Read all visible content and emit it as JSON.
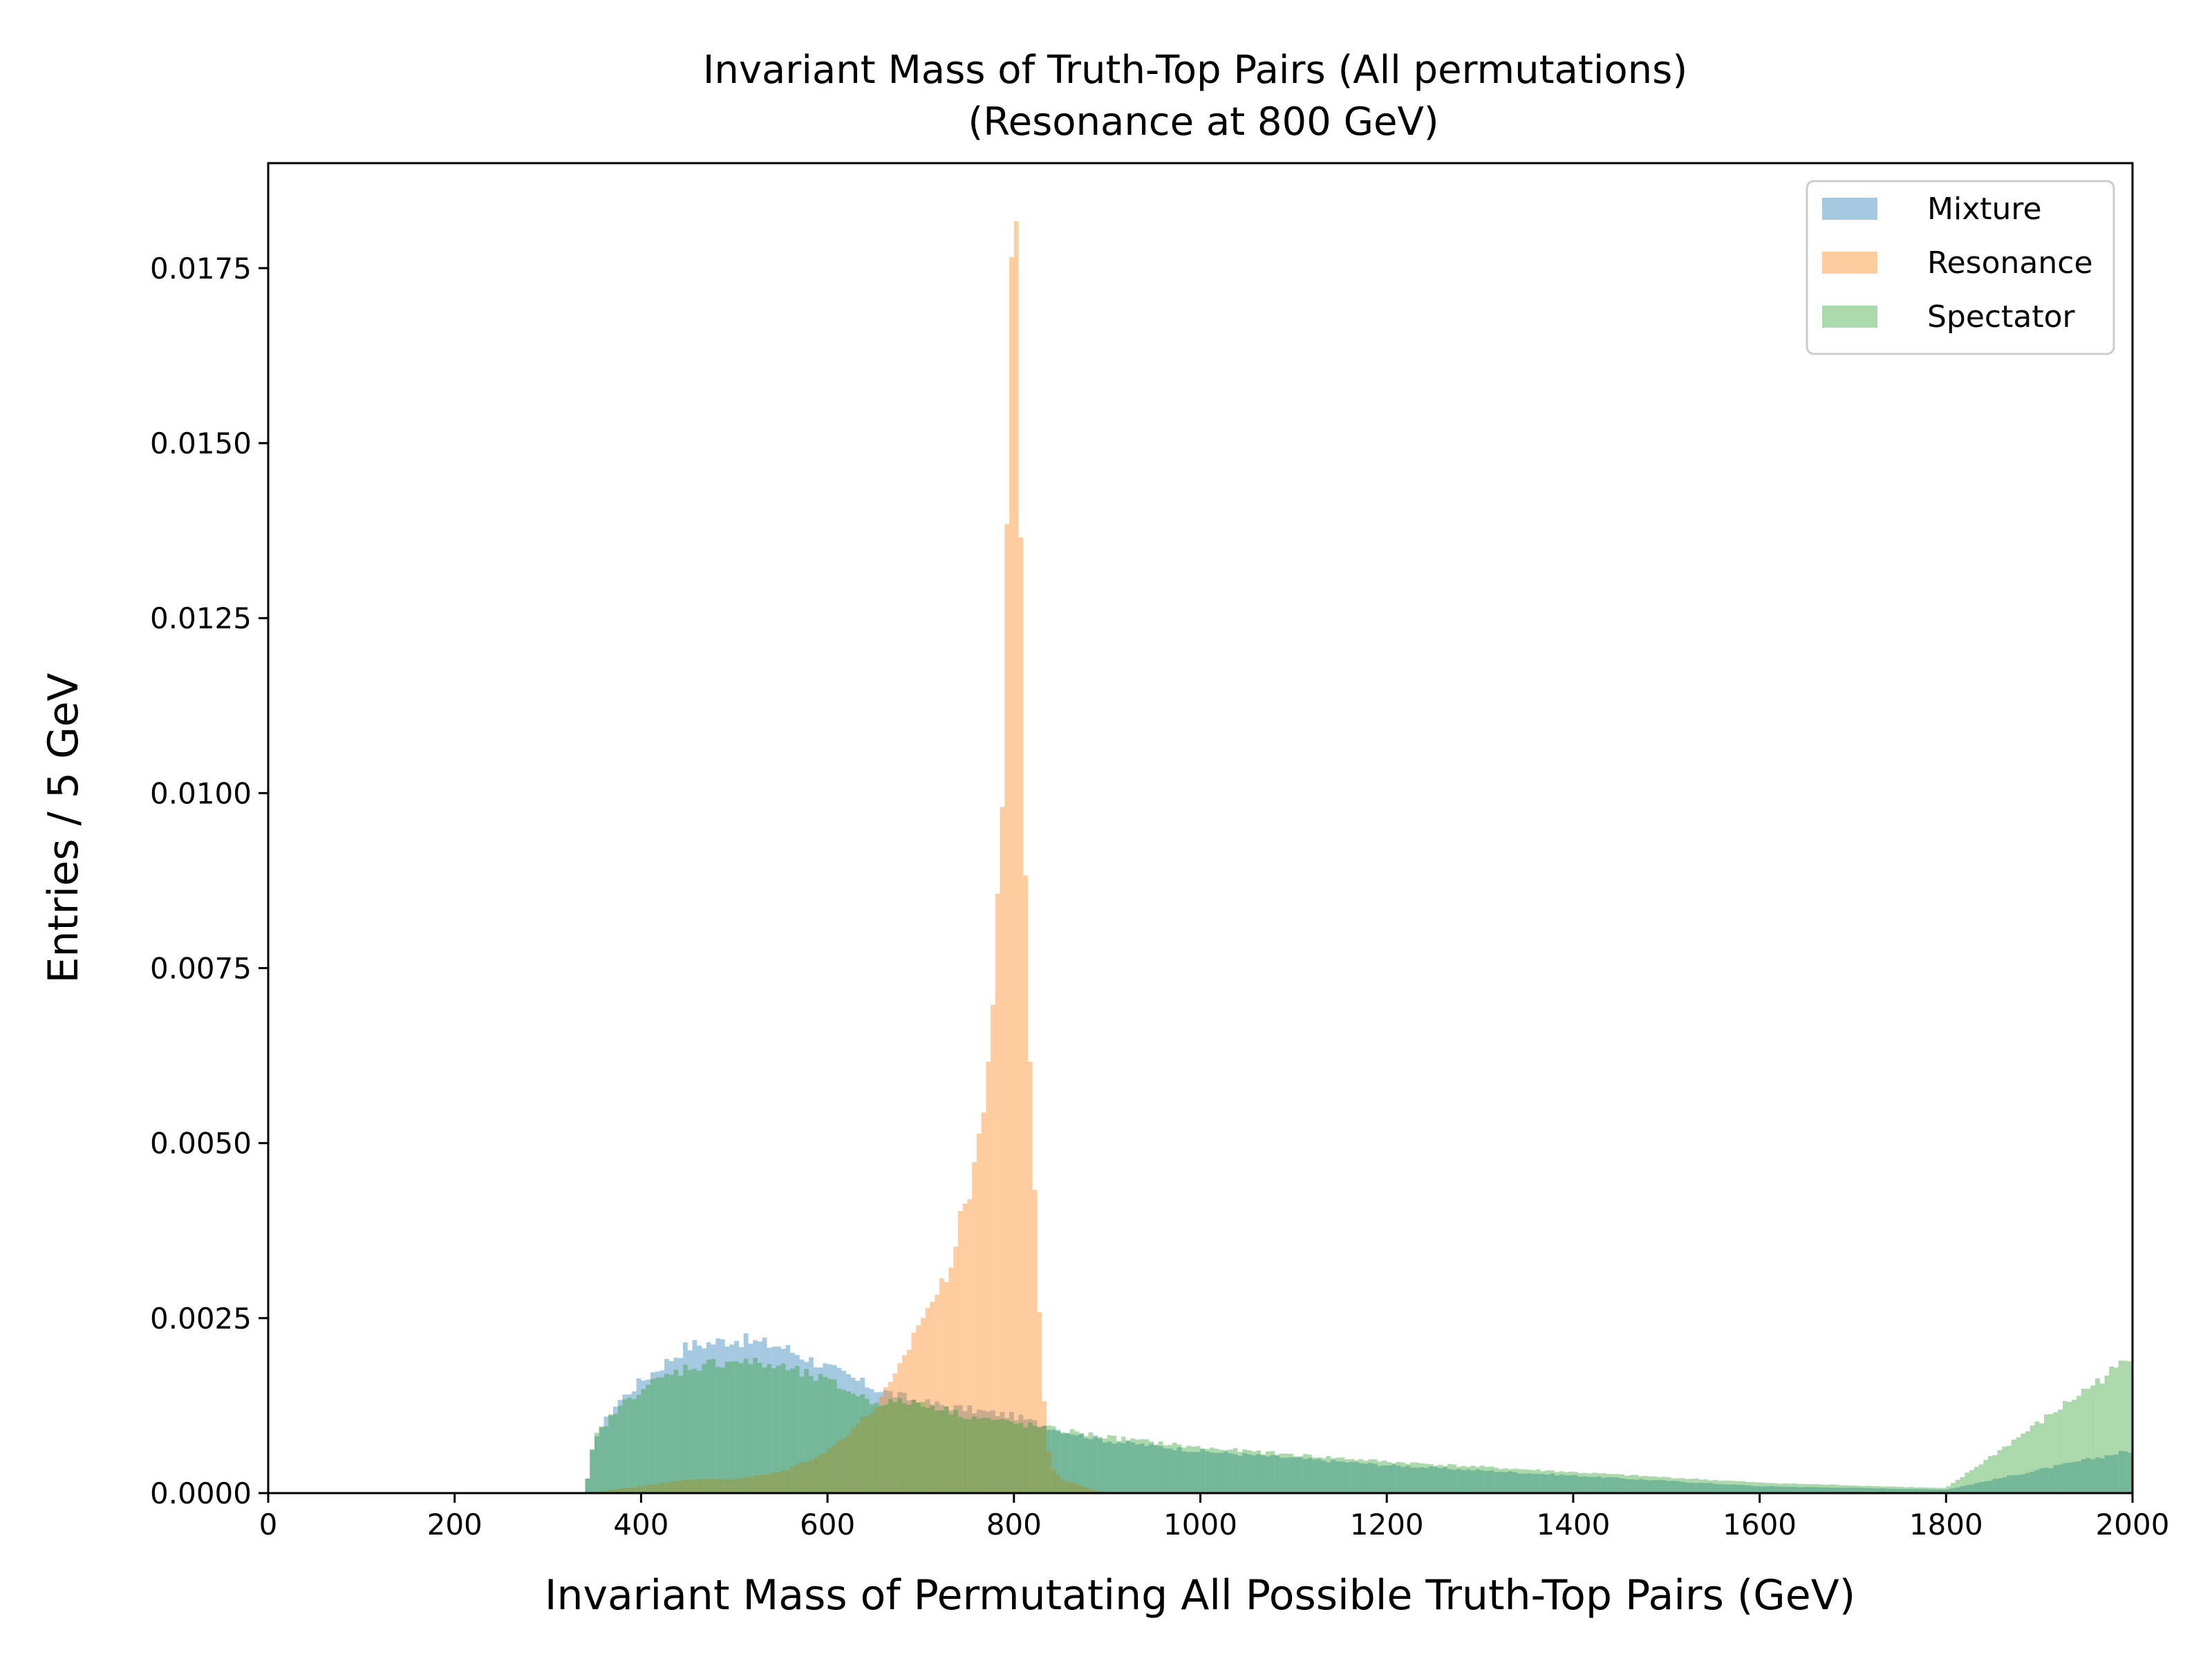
{
  "chart_data": {
    "type": "bar",
    "title": "Invariant Mass of Truth-Top Pairs (All permutations)",
    "subtitle": "(Resonance at 800 GeV)",
    "xlabel": "Invariant Mass of Permutating All Possible Truth-Top Pairs (GeV)",
    "ylabel": "Entries / 5 GeV",
    "xlim": [
      0,
      2000
    ],
    "ylim": [
      0,
      0.019
    ],
    "bin_width": 5,
    "grid": false,
    "legend_position": "top-right",
    "x_ticks": [
      "0",
      "200",
      "400",
      "600",
      "800",
      "1000",
      "1200",
      "1400",
      "1600",
      "1800",
      "2000"
    ],
    "y_ticks": [
      "0.0000",
      "0.0025",
      "0.0050",
      "0.0075",
      "0.0100",
      "0.0125",
      "0.0150",
      "0.0175"
    ],
    "x_tick_values": [
      0,
      200,
      400,
      600,
      800,
      1000,
      1200,
      1400,
      1600,
      1800,
      2000
    ],
    "y_tick_values": [
      0,
      0.0025,
      0.005,
      0.0075,
      0.01,
      0.0125,
      0.015,
      0.0175
    ],
    "series": [
      {
        "name": "Mixture",
        "color": "#1f77b4",
        "x": [
          340,
          350,
          375,
          400,
          450,
          500,
          550,
          600,
          650,
          700,
          750,
          800,
          850,
          900,
          1000,
          1200,
          1400,
          1600,
          1800,
          1995
        ],
        "values": [
          0.0,
          0.0008,
          0.0013,
          0.0016,
          0.0021,
          0.0022,
          0.0021,
          0.0018,
          0.0015,
          0.0013,
          0.0012,
          0.0011,
          0.0009,
          0.00075,
          0.0006,
          0.0004,
          0.00025,
          0.0001,
          5e-05,
          0.0006
        ]
      },
      {
        "name": "Resonance",
        "color": "#ff7f0e",
        "x": [
          340,
          400,
          450,
          500,
          550,
          600,
          650,
          675,
          700,
          725,
          750,
          760,
          770,
          780,
          785,
          790,
          795,
          800,
          805,
          810,
          815,
          820,
          825,
          830,
          835,
          840,
          850,
          875,
          900
        ],
        "values": [
          0.0,
          0.0001,
          0.0002,
          0.0002,
          0.0003,
          0.0006,
          0.0012,
          0.0017,
          0.0025,
          0.003,
          0.0042,
          0.005,
          0.0055,
          0.0078,
          0.0095,
          0.0105,
          0.016,
          0.0182,
          0.0173,
          0.0105,
          0.0075,
          0.005,
          0.0035,
          0.0018,
          0.0008,
          0.0004,
          0.0002,
          0.0001,
          0.0
        ]
      },
      {
        "name": "Spectator",
        "color": "#2ca02c",
        "x": [
          340,
          350,
          375,
          400,
          450,
          500,
          550,
          600,
          650,
          700,
          750,
          800,
          850,
          900,
          1000,
          1200,
          1400,
          1600,
          1800,
          1995
        ],
        "values": [
          0.0,
          0.0008,
          0.0012,
          0.0015,
          0.0018,
          0.0019,
          0.0018,
          0.0016,
          0.0013,
          0.0013,
          0.0011,
          0.001,
          0.0009,
          0.0008,
          0.00065,
          0.00045,
          0.0003,
          0.00015,
          7e-05,
          0.0019
        ]
      }
    ]
  }
}
